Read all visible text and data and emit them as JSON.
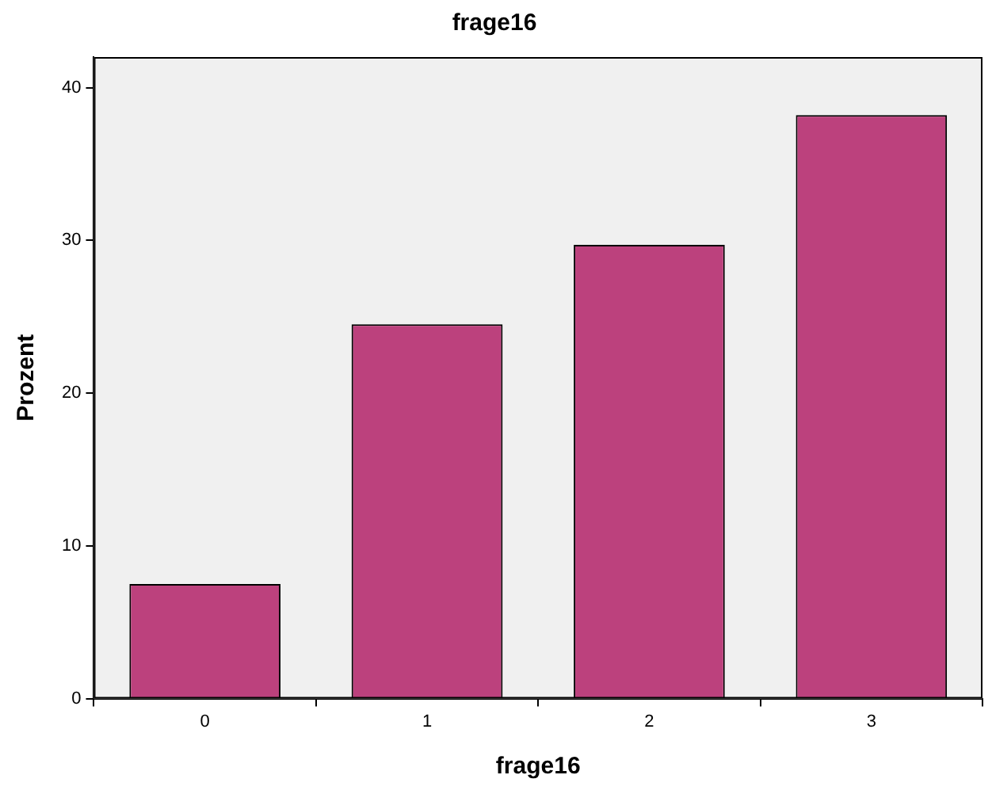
{
  "chart_data": {
    "type": "bar",
    "title": "frage16",
    "xlabel": "frage16",
    "ylabel": "Prozent",
    "categories": [
      "0",
      "1",
      "2",
      "3"
    ],
    "values": [
      7.5,
      24.5,
      29.7,
      38.2
    ],
    "color": "#bc417d",
    "ylim": [
      0,
      42
    ],
    "yticks": [
      0,
      10,
      20,
      30,
      40
    ],
    "grid": false,
    "legend": false
  }
}
